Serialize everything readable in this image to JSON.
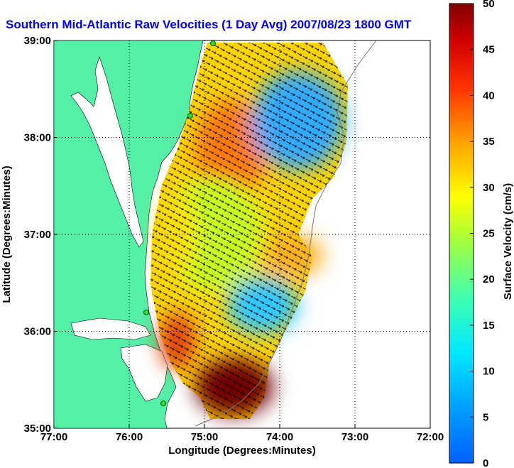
{
  "chart_data": {
    "type": "heatmap",
    "title": "Southern Mid-Atlantic Raw Velocities (1 Day Avg) 2007/08/23 1800 GMT",
    "title_color": "#0000ee",
    "xlabel": "Longitude (Degrees:Minutes)",
    "ylabel": "Latitude (Degrees:Minutes)",
    "xlim": [
      -77,
      -72
    ],
    "ylim": [
      35,
      39
    ],
    "x_ticks": [
      {
        "value": -77,
        "label": "77:00"
      },
      {
        "value": -76,
        "label": "76:00"
      },
      {
        "value": -75,
        "label": "75:00"
      },
      {
        "value": -74,
        "label": "74:00"
      },
      {
        "value": -73,
        "label": "73:00"
      },
      {
        "value": -72,
        "label": "72:00"
      }
    ],
    "y_ticks": [
      {
        "value": 35,
        "label": "35:00"
      },
      {
        "value": 36,
        "label": "36:00"
      },
      {
        "value": 37,
        "label": "37:00"
      },
      {
        "value": 38,
        "label": "38:00"
      },
      {
        "value": 39,
        "label": "39:00"
      }
    ],
    "grid": true,
    "colorbar": {
      "label": "Surface Velocity (cm/s)",
      "range": [
        0,
        50
      ],
      "ticks": [
        "0",
        "5",
        "10",
        "15",
        "20",
        "25",
        "30",
        "35",
        "40",
        "45",
        "50"
      ],
      "placement": "right",
      "colormap": "jet"
    },
    "land_color": "#55f0a8",
    "field_regions": [
      {
        "region": "northern band near 38:00 N, 75:00 W",
        "speed_cm_s": 35
      },
      {
        "region": "offshore eddy near 38:15 N, 73:40 W",
        "speed_cm_s": 7
      },
      {
        "region": "central shelf 37:00 N, 75:00 W",
        "speed_cm_s": 22
      },
      {
        "region": "jet near 36:45 N, 74:00 W",
        "speed_cm_s": 32
      },
      {
        "region": "patch near 36:15 N, 74:20 W",
        "speed_cm_s": 10
      },
      {
        "region": "Gulf Stream near 35:25 N, 74:50 W",
        "speed_cm_s": 50
      },
      {
        "region": "coastal 35:50 N, 75:30 W",
        "speed_cm_s": 36
      }
    ]
  }
}
